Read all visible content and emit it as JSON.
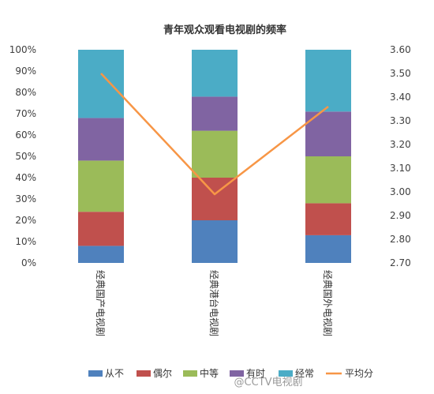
{
  "chart_data": {
    "type": "bar",
    "stacking": "percent",
    "title": "青年观众观看电视剧的频率",
    "categories": [
      "经典国产电视剧",
      "经典港台电视剧",
      "经典国外电视剧"
    ],
    "series": [
      {
        "name": "从不",
        "values": [
          8,
          20,
          13
        ],
        "color": "#4F81BD"
      },
      {
        "name": "偶尔",
        "values": [
          16,
          20,
          15
        ],
        "color": "#C0504D"
      },
      {
        "name": "中等",
        "values": [
          24,
          22,
          22
        ],
        "color": "#9BBB59"
      },
      {
        "name": "有时",
        "values": [
          20,
          16,
          21
        ],
        "color": "#8064A2"
      },
      {
        "name": "经常",
        "values": [
          32,
          22,
          29
        ],
        "color": "#4BACC6"
      }
    ],
    "line_series": {
      "name": "平均分",
      "values": [
        3.5,
        2.99,
        3.36
      ],
      "color": "#F79646",
      "axis": "secondary"
    },
    "y_left": {
      "min": 0,
      "max": 100,
      "step": 10,
      "ticks": [
        "0%",
        "10%",
        "20%",
        "30%",
        "40%",
        "50%",
        "60%",
        "70%",
        "80%",
        "90%",
        "100%"
      ]
    },
    "y_right": {
      "min": 2.7,
      "max": 3.6,
      "step": 0.1,
      "ticks": [
        "2.70",
        "2.80",
        "2.90",
        "3.00",
        "3.10",
        "3.20",
        "3.30",
        "3.40",
        "3.50",
        "3.60"
      ]
    },
    "legend_position": "bottom",
    "grid": false
  },
  "watermark": "@CCTV电视剧"
}
